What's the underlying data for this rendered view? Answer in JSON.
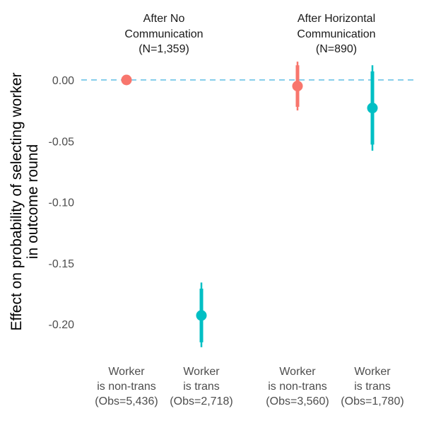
{
  "chart_data": {
    "type": "scatter",
    "ylabel_lines": [
      "Effect on probability of selecting worker",
      "in outcome round"
    ],
    "ylim": [
      -0.225,
      0.02
    ],
    "yticks": [
      0.0,
      -0.05,
      -0.1,
      -0.15,
      -0.2
    ],
    "ytick_labels": [
      "0.00",
      "-0.05",
      "-0.10",
      "-0.15",
      "-0.20"
    ],
    "reference_line": {
      "y": 0,
      "style": "dashed",
      "color": "#87CEEB"
    },
    "grid": false,
    "legend": "none",
    "groups": [
      {
        "title_lines": [
          "After No",
          "Communication",
          "(N=1,359)"
        ]
      },
      {
        "title_lines": [
          "After Horizontal",
          "Communication",
          "(N=890)"
        ]
      }
    ],
    "categories": [
      {
        "label_lines": [
          "Worker",
          "is non-trans",
          "(Obs=5,436)"
        ]
      },
      {
        "label_lines": [
          "Worker",
          "is trans",
          "(Obs=2,718)"
        ]
      },
      {
        "label_lines": [
          "Worker",
          "is non-trans",
          "(Obs=3,560)"
        ]
      },
      {
        "label_lines": [
          "Worker",
          "is trans",
          "(Obs=1,780)"
        ]
      }
    ],
    "points": [
      {
        "category_index": 0,
        "y": 0.0,
        "ci_inner": [
          0.0,
          0.0
        ],
        "ci_outer": [
          0.0,
          0.0
        ],
        "color": "#F8766D"
      },
      {
        "category_index": 1,
        "y": -0.193,
        "ci_inner": [
          -0.171,
          -0.215
        ],
        "ci_outer": [
          -0.166,
          -0.219
        ],
        "color": "#00BFC4"
      },
      {
        "category_index": 2,
        "y": -0.005,
        "ci_inner": [
          0.012,
          -0.022
        ],
        "ci_outer": [
          0.015,
          -0.025
        ],
        "color": "#F8766D"
      },
      {
        "category_index": 3,
        "y": -0.023,
        "ci_inner": [
          0.007,
          -0.053
        ],
        "ci_outer": [
          0.012,
          -0.058
        ],
        "color": "#00BFC4"
      }
    ]
  }
}
